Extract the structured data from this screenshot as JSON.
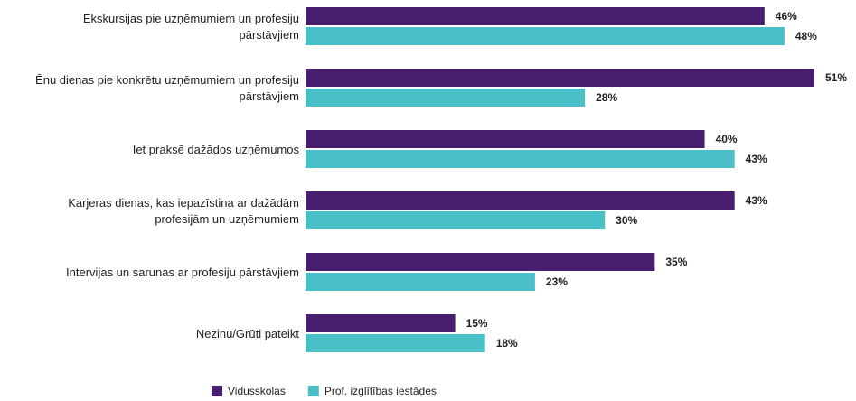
{
  "chart_data": {
    "type": "bar",
    "orientation": "horizontal",
    "categories": [
      "Ekskursijas pie uzņēmumiem un profesiju\npārstāvjiem",
      "Ēnu dienas pie konkrētu uzņēmumiem un profesiju\npārstāvjiem",
      "Iet praksē dažādos uzņēmumos",
      "Karjeras dienas, kas iepazīstina ar dažādām\nprofesijām un uzņēmumiem",
      "Intervijas un sarunas ar profesiju pārstāvjiem",
      "Nezinu/Grūti pateikt"
    ],
    "series": [
      {
        "name": "Vidusskolas",
        "color": "#4a1e6e",
        "values": [
          46,
          51,
          40,
          43,
          35,
          15
        ],
        "value_labels": [
          "46%",
          "51%",
          "40%",
          "43%",
          "35%",
          "15%"
        ]
      },
      {
        "name": "Prof. izglītības iestādes",
        "color": "#4bbfc8",
        "values": [
          48,
          28,
          43,
          30,
          23,
          18
        ],
        "value_labels": [
          "48%",
          "28%",
          "43%",
          "30%",
          "23%",
          "18%"
        ]
      }
    ],
    "legend": "bottom"
  }
}
